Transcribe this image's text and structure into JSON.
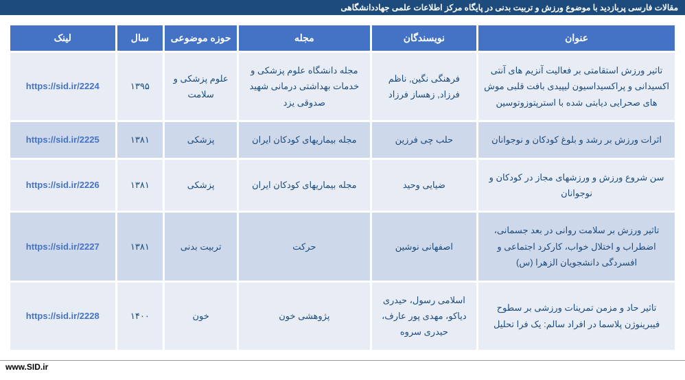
{
  "header": {
    "title": "مقالات فارسی پربازدید با موضوع ورزش و تربیت بدنی در پایگاه مرکز اطلاعات علمی جهاددانشگاهی"
  },
  "table": {
    "columns": [
      {
        "key": "title",
        "label": "عنوان"
      },
      {
        "key": "authors",
        "label": "نویسندگان"
      },
      {
        "key": "journal",
        "label": "مجله"
      },
      {
        "key": "field",
        "label": "حوزه موضوعی"
      },
      {
        "key": "year",
        "label": "سال"
      },
      {
        "key": "link",
        "label": "لینک"
      }
    ],
    "rows": [
      {
        "title": "تاثیر ورزش استقامتی بر فعالیت آنزیم های آنتی اکسیدانی و پراکسیداسیون لیپیدی بافت قلبی موش های صحرایی دیابتی شده با استرپتوزوتوسین",
        "authors": "فرهنگی نگین, ناظم فرزاد, زهساز فرزاد",
        "journal": "مجله دانشگاه علوم پزشکی و خدمات بهداشتی درمانی شهید صدوقی یزد",
        "field": "علوم پزشکی و سلامت",
        "year": "۱۳۹۵",
        "link": "https://sid.ir/2224"
      },
      {
        "title": "اثرات ورزش بر رشد و بلوغ کودکان و نوجوانان",
        "authors": "حلب چی فرزین",
        "journal": "مجله بیماریهای کودکان ایران",
        "field": "پزشکی",
        "year": "۱۳۸۱",
        "link": "https://sid.ir/2225"
      },
      {
        "title": "سن شروع ورزش و ورزشهای مجاز در کودکان و نوجوانان",
        "authors": "ضیایی وحید",
        "journal": "مجله بیماریهای کودکان ایران",
        "field": "پزشکی",
        "year": "۱۳۸۱",
        "link": "https://sid.ir/2226"
      },
      {
        "title": "تاثیر ورزش بر سلامت روانی در بعد جسمانی، اضطراب و اختلال خواب، کارکرد اجتماعی و افسردگی دانشجویان الزهرا (س)",
        "authors": "اصفهانی نوشین",
        "journal": "حرکت",
        "field": "تربیت بدنی",
        "year": "۱۳۸۱",
        "link": "https://sid.ir/2227"
      },
      {
        "title": "تاثیر حاد و مزمن تمرینات ورزشی بر سطوح فیبرینوژن پلاسما در افراد سالم: یک فرا تحلیل",
        "authors": "اسلامی رسول، حیدری دیاکو، مهدی پور عارف، حیدری سروه",
        "journal": "پژوهشی خون",
        "field": "خون",
        "year": "۱۴۰۰",
        "link": "https://sid.ir/2228"
      }
    ]
  },
  "footer": {
    "text": "www.SID.ir"
  }
}
